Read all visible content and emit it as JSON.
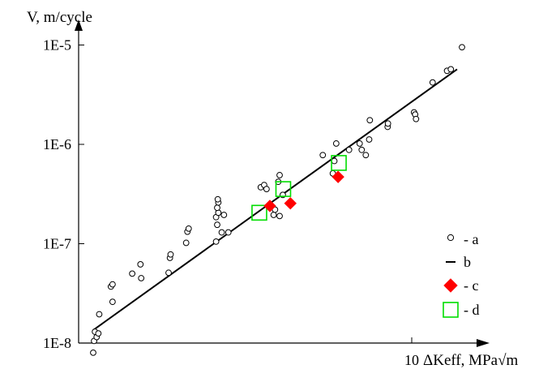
{
  "chart_data": {
    "type": "scatter",
    "ylabel": "V, m/cycle",
    "xlabel": "ΔKeff, MPa√m",
    "y_scale": "log",
    "x_scale": "log",
    "y_ticks": [
      {
        "value": 1e-05,
        "label": "1E-5"
      },
      {
        "value": 1e-06,
        "label": "1E-6"
      },
      {
        "value": 1e-07,
        "label": "1E-7"
      },
      {
        "value": 1e-08,
        "label": "1E-8"
      }
    ],
    "x_ticks": [
      {
        "value": 10,
        "label": "10"
      }
    ],
    "xlim": [
      3.0,
      12.5
    ],
    "ylim": [
      1e-08,
      1.5e-05
    ],
    "grid": false,
    "legend_position": "right",
    "legend": [
      {
        "key": "a",
        "label": "- a",
        "marker": "open-circle"
      },
      {
        "key": "b",
        "label": "b",
        "marker": "line"
      },
      {
        "key": "c",
        "label": "- c",
        "marker": "red-diamond"
      },
      {
        "key": "d",
        "label": "- d",
        "marker": "green-square"
      }
    ],
    "colors": {
      "c": "#ff0000",
      "d": "#00dd00",
      "a": "#000000",
      "b": "#000000"
    },
    "series": [
      {
        "key": "a",
        "points": [
          [
            3.32,
            8e-09
          ],
          [
            3.33,
            1.05e-08
          ],
          [
            3.34,
            1.3e-08
          ],
          [
            3.36,
            1.15e-08
          ],
          [
            3.38,
            1.25e-08
          ],
          [
            3.39,
            1.95e-08
          ],
          [
            3.55,
            2.6e-08
          ],
          [
            3.53,
            3.7e-08
          ],
          [
            3.55,
            3.9e-08
          ],
          [
            3.8,
            5e-08
          ],
          [
            3.92,
            4.5e-08
          ],
          [
            3.91,
            6.2e-08
          ],
          [
            4.31,
            5.1e-08
          ],
          [
            4.33,
            7.2e-08
          ],
          [
            4.34,
            7.8e-08
          ],
          [
            4.58,
            1.02e-07
          ],
          [
            4.6,
            1.32e-07
          ],
          [
            4.62,
            1.42e-07
          ],
          [
            5.08,
            1.05e-07
          ],
          [
            5.1,
            1.55e-07
          ],
          [
            5.08,
            1.85e-07
          ],
          [
            5.12,
            2.05e-07
          ],
          [
            5.1,
            2.3e-07
          ],
          [
            5.12,
            2.6e-07
          ],
          [
            5.11,
            2.8e-07
          ],
          [
            5.18,
            1.3e-07
          ],
          [
            5.22,
            1.95e-07
          ],
          [
            5.3,
            1.3e-07
          ],
          [
            5.93,
            3.7e-07
          ],
          [
            6.0,
            3.9e-07
          ],
          [
            6.05,
            3.55e-07
          ],
          [
            6.2,
            1.95e-07
          ],
          [
            6.23,
            2.2e-07
          ],
          [
            6.3,
            4.2e-07
          ],
          [
            6.33,
            4.9e-07
          ],
          [
            6.33,
            1.9e-07
          ],
          [
            6.4,
            3.1e-07
          ],
          [
            7.35,
            7.8e-07
          ],
          [
            7.61,
            5.1e-07
          ],
          [
            7.65,
            6.8e-07
          ],
          [
            7.7,
            1.02e-06
          ],
          [
            8.05,
            8.8e-07
          ],
          [
            8.35,
            1.02e-06
          ],
          [
            8.41,
            8.8e-07
          ],
          [
            8.53,
            7.8e-07
          ],
          [
            8.63,
            1.12e-06
          ],
          [
            8.65,
            1.75e-06
          ],
          [
            9.2,
            1.5e-06
          ],
          [
            9.21,
            1.62e-06
          ],
          [
            10.08,
            2.1e-06
          ],
          [
            10.12,
            2e-06
          ],
          [
            10.15,
            1.8e-06
          ],
          [
            10.75,
            4.2e-06
          ],
          [
            11.3,
            5.5e-06
          ],
          [
            11.45,
            5.7e-06
          ],
          [
            11.9,
            9.5e-06
          ]
        ]
      },
      {
        "key": "b",
        "points": [
          [
            3.32,
            1.35e-08
          ],
          [
            11.7,
            5.7e-06
          ]
        ]
      },
      {
        "key": "c",
        "points": [
          [
            6.12,
            2.4e-07
          ],
          [
            6.57,
            2.55e-07
          ],
          [
            7.75,
            4.7e-07
          ]
        ]
      },
      {
        "key": "d",
        "points": [
          [
            5.9,
            2.05e-07
          ],
          [
            6.41,
            3.55e-07
          ],
          [
            7.77,
            6.5e-07
          ]
        ]
      }
    ]
  }
}
